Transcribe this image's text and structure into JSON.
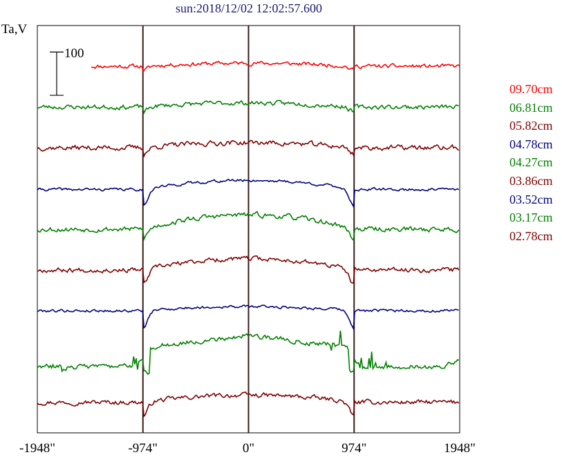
{
  "chart_data": {
    "type": "line",
    "title": "sun:2018/12/02 12:02:57.600",
    "ylabel": "Ta,V",
    "scale_bar_label": "100",
    "scale_bar_value": 100,
    "xlim": [
      -1948,
      1948
    ],
    "x_ticks": [
      -1948,
      -974,
      0,
      974,
      1948
    ],
    "x_tick_labels": [
      "-1948\"",
      "-974\"",
      "0\"",
      "974\"",
      "1948\""
    ],
    "vertical_markers": [
      -974,
      0,
      974
    ],
    "legend_position": "right",
    "legend_order_top_to_bottom": [
      "09.70cm",
      "06.81cm",
      "05.82cm",
      "04.78cm",
      "04.27cm",
      "03.86cm",
      "03.52cm",
      "03.17cm",
      "02.78cm"
    ],
    "series": [
      {
        "name": "09.70cm",
        "color": "#ff0000",
        "offset": 720,
        "start_x": -1450,
        "limb_dip": 8,
        "disk_rise": 6,
        "noise": 7,
        "kind": "quiet",
        "seed": 11
      },
      {
        "name": "06.81cm",
        "color": "#008000",
        "offset": 640,
        "start_x": -1948,
        "limb_dip": 10,
        "disk_rise": 8,
        "noise": 8,
        "kind": "quiet",
        "seed": 23
      },
      {
        "name": "05.82cm",
        "color": "#800000",
        "offset": 560,
        "start_x": -1948,
        "limb_dip": 12,
        "disk_rise": 10,
        "noise": 9,
        "kind": "quiet",
        "seed": 37
      },
      {
        "name": "04.78cm",
        "color": "#000080",
        "offset": 478,
        "start_x": -1948,
        "limb_dip": 32,
        "disk_rise": 18,
        "noise": 5,
        "kind": "quiet",
        "seed": 41
      },
      {
        "name": "04.27cm",
        "color": "#008000",
        "offset": 400,
        "start_x": -1948,
        "limb_dip": 18,
        "disk_rise": 28,
        "noise": 9,
        "kind": "quiet",
        "seed": 53
      },
      {
        "name": "03.86cm",
        "color": "#800000",
        "offset": 320,
        "start_x": -1948,
        "limb_dip": 30,
        "disk_rise": 22,
        "noise": 8,
        "kind": "quiet",
        "seed": 67
      },
      {
        "name": "03.52cm",
        "color": "#000080",
        "offset": 240,
        "start_x": -1948,
        "limb_dip": 34,
        "disk_rise": 8,
        "noise": 5,
        "kind": "quiet",
        "seed": 79
      },
      {
        "name": "03.17cm",
        "color": "#008000",
        "offset": 130,
        "start_x": -1948,
        "limb_dip": 0,
        "disk_rise": 0,
        "noise": 9,
        "kind": "active",
        "seed": 83
      },
      {
        "name": "02.78cm",
        "color": "#800000",
        "offset": 60,
        "start_x": -1948,
        "limb_dip": 28,
        "disk_rise": 14,
        "noise": 8,
        "kind": "quiet",
        "seed": 97
      }
    ]
  }
}
